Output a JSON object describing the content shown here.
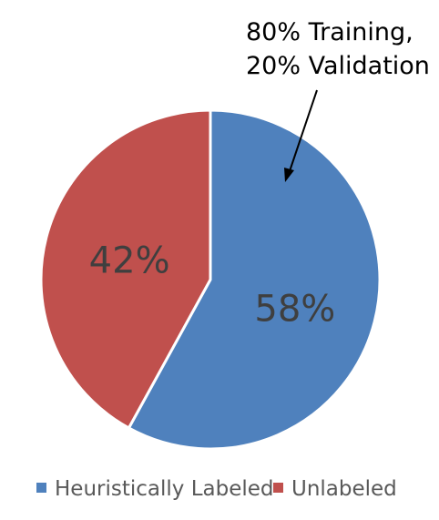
{
  "chart_data": {
    "type": "pie",
    "categories": [
      "Heuristically Labeled",
      "Unlabeled"
    ],
    "values": [
      58,
      42
    ],
    "value_labels": [
      "58%",
      "42%"
    ],
    "colors": [
      "#4f81bd",
      "#c0504d"
    ],
    "legend_position": "bottom",
    "annotation": {
      "lines": [
        "80% Training,",
        "20% Validation"
      ],
      "points_to": "Heuristically Labeled"
    }
  }
}
